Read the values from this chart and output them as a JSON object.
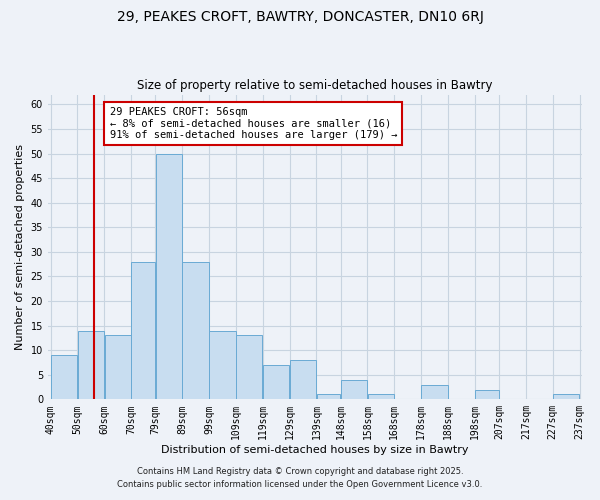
{
  "title": "29, PEAKES CROFT, BAWTRY, DONCASTER, DN10 6RJ",
  "subtitle": "Size of property relative to semi-detached houses in Bawtry",
  "xlabel": "Distribution of semi-detached houses by size in Bawtry",
  "ylabel": "Number of semi-detached properties",
  "bar_color": "#c8ddf0",
  "bar_edge_color": "#6aaad4",
  "grid_color": "#c8d4e0",
  "background_color": "#eef2f8",
  "bin_edges": [
    40,
    50,
    60,
    70,
    79,
    89,
    99,
    109,
    119,
    129,
    139,
    148,
    158,
    168,
    178,
    188,
    198,
    207,
    217,
    227,
    237
  ],
  "counts": [
    9,
    14,
    13,
    28,
    50,
    28,
    14,
    13,
    7,
    8,
    1,
    4,
    1,
    0,
    3,
    0,
    2,
    0,
    0,
    1
  ],
  "tick_labels": [
    "40sqm",
    "50sqm",
    "60sqm",
    "70sqm",
    "79sqm",
    "89sqm",
    "99sqm",
    "109sqm",
    "119sqm",
    "129sqm",
    "139sqm",
    "148sqm",
    "158sqm",
    "168sqm",
    "178sqm",
    "188sqm",
    "198sqm",
    "207sqm",
    "217sqm",
    "227sqm",
    "237sqm"
  ],
  "vline_x": 56,
  "vline_color": "#cc0000",
  "annotation_title": "29 PEAKES CROFT: 56sqm",
  "annotation_line1": "← 8% of semi-detached houses are smaller (16)",
  "annotation_line2": "91% of semi-detached houses are larger (179) →",
  "annotation_box_color": "#ffffff",
  "annotation_box_edge_color": "#cc0000",
  "ylim": [
    0,
    62
  ],
  "yticks": [
    0,
    5,
    10,
    15,
    20,
    25,
    30,
    35,
    40,
    45,
    50,
    55,
    60
  ],
  "footer1": "Contains HM Land Registry data © Crown copyright and database right 2025.",
  "footer2": "Contains public sector information licensed under the Open Government Licence v3.0.",
  "title_fontsize": 10,
  "subtitle_fontsize": 8.5,
  "axis_label_fontsize": 8,
  "tick_fontsize": 7,
  "annotation_fontsize": 7.5,
  "footer_fontsize": 6
}
